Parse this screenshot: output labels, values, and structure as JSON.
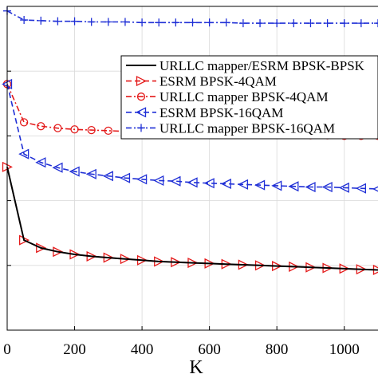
{
  "chart_data": {
    "type": "line",
    "xlabel": "K",
    "ylabel": "",
    "title": "",
    "xlim": [
      0,
      1100
    ],
    "ylim": [
      0,
      5
    ],
    "x_ticks": [
      0,
      200,
      400,
      600,
      800,
      1000
    ],
    "x_tick_labels": [
      "0",
      "200",
      "400",
      "600",
      "800",
      "1000"
    ],
    "y_ticks": [
      0,
      1,
      2,
      3,
      4,
      5
    ],
    "grid": true,
    "legend_position": "top-right",
    "series": [
      {
        "name": "URLLC mapper/ESRM BPSK-BPSK",
        "color": "#000000",
        "line": "solid",
        "marker": "none",
        "x": [
          0,
          50,
          100,
          150,
          200,
          250,
          300,
          350,
          400,
          450,
          500,
          550,
          600,
          650,
          700,
          750,
          800,
          850,
          900,
          950,
          1000,
          1050,
          1100
        ],
        "y": [
          2.52,
          1.39,
          1.27,
          1.21,
          1.17,
          1.14,
          1.12,
          1.1,
          1.08,
          1.06,
          1.05,
          1.04,
          1.03,
          1.02,
          1.01,
          1.0,
          0.99,
          0.98,
          0.97,
          0.96,
          0.95,
          0.94,
          0.93
        ]
      },
      {
        "name": "ESRM BPSK-4QAM",
        "color": "#e41a1a",
        "line": "dashed",
        "marker": "triangle-right",
        "x": [
          0,
          50,
          100,
          150,
          200,
          250,
          300,
          350,
          400,
          450,
          500,
          550,
          600,
          650,
          700,
          750,
          800,
          850,
          900,
          950,
          1000,
          1050,
          1100
        ],
        "y": [
          2.52,
          1.39,
          1.27,
          1.21,
          1.17,
          1.14,
          1.12,
          1.1,
          1.08,
          1.06,
          1.05,
          1.04,
          1.03,
          1.02,
          1.01,
          1.0,
          0.99,
          0.98,
          0.97,
          0.96,
          0.95,
          0.94,
          0.93
        ]
      },
      {
        "name": "URLLC mapper BPSK-4QAM",
        "color": "#e41a1a",
        "line": "dashdot",
        "marker": "circle",
        "x": [
          0,
          50,
          100,
          150,
          200,
          250,
          300,
          350,
          400,
          450,
          500,
          550,
          600,
          650,
          700,
          750,
          800,
          850,
          900,
          950,
          1000,
          1050,
          1100
        ],
        "y": [
          3.8,
          3.21,
          3.15,
          3.12,
          3.1,
          3.09,
          3.08,
          3.07,
          3.06,
          3.06,
          3.05,
          3.05,
          3.04,
          3.04,
          3.03,
          3.03,
          3.02,
          3.02,
          3.01,
          3.01,
          3.0,
          3.0,
          3.0
        ]
      },
      {
        "name": "ESRM  BPSK-16QAM",
        "color": "#1f2fd6",
        "line": "dashed",
        "marker": "triangle-left",
        "x": [
          0,
          50,
          100,
          150,
          200,
          250,
          300,
          350,
          400,
          450,
          500,
          550,
          600,
          650,
          700,
          750,
          800,
          850,
          900,
          950,
          1000,
          1050,
          1100
        ],
        "y": [
          3.8,
          2.72,
          2.59,
          2.51,
          2.45,
          2.41,
          2.38,
          2.35,
          2.33,
          2.31,
          2.3,
          2.28,
          2.27,
          2.26,
          2.25,
          2.24,
          2.23,
          2.22,
          2.21,
          2.21,
          2.2,
          2.19,
          2.18
        ]
      },
      {
        "name": "URLLC mapper BPSK-16QAM",
        "color": "#1f2fd6",
        "line": "dashdot",
        "marker": "plus",
        "x": [
          0,
          50,
          100,
          150,
          200,
          250,
          300,
          350,
          400,
          450,
          500,
          550,
          600,
          650,
          700,
          750,
          800,
          850,
          900,
          950,
          1000,
          1050,
          1100
        ],
        "y": [
          4.93,
          4.79,
          4.78,
          4.77,
          4.77,
          4.76,
          4.76,
          4.76,
          4.75,
          4.75,
          4.75,
          4.75,
          4.75,
          4.75,
          4.74,
          4.74,
          4.74,
          4.74,
          4.74,
          4.74,
          4.74,
          4.74,
          4.74
        ]
      }
    ]
  }
}
